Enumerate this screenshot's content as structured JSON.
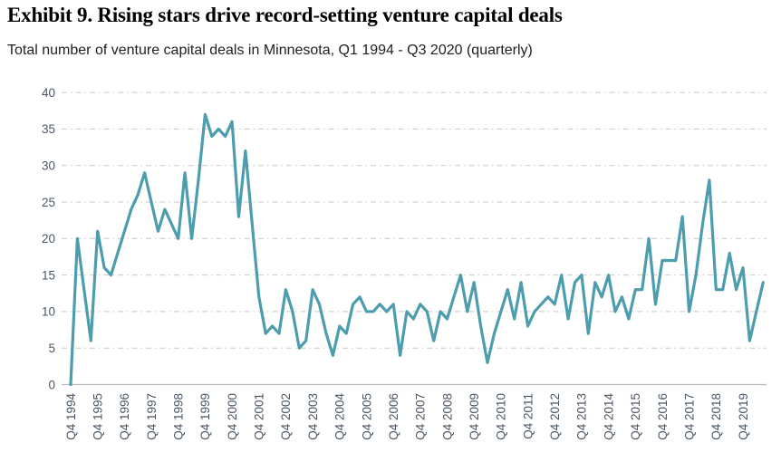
{
  "header": {
    "title": "Exhibit 9. Rising stars drive record-setting venture capital deals",
    "subtitle": "Total number of venture capital deals in Minnesota, Q1 1994 - Q3 2020 (quarterly)"
  },
  "chart_data": {
    "type": "line",
    "title": "Exhibit 9. Rising stars drive record-setting venture capital deals",
    "subtitle": "Total number of venture capital deals in Minnesota, Q1 1994 - Q3 2020 (quarterly)",
    "xlabel": "",
    "ylabel": "",
    "ylim": [
      0,
      40
    ],
    "y_ticks": [
      0,
      5,
      10,
      15,
      20,
      25,
      30,
      35,
      40
    ],
    "grid": "horizontal-dashed",
    "legend": "none",
    "x_tick_every": 4,
    "categories": [
      "Q4 1994",
      "Q1 1995",
      "Q2 1995",
      "Q3 1995",
      "Q4 1995",
      "Q1 1996",
      "Q2 1996",
      "Q3 1996",
      "Q4 1996",
      "Q1 1997",
      "Q2 1997",
      "Q3 1997",
      "Q4 1997",
      "Q1 1998",
      "Q2 1998",
      "Q3 1998",
      "Q4 1998",
      "Q1 1999",
      "Q2 1999",
      "Q3 1999",
      "Q4 1999",
      "Q1 2000",
      "Q2 2000",
      "Q3 2000",
      "Q4 2000",
      "Q1 2001",
      "Q2 2001",
      "Q3 2001",
      "Q4 2001",
      "Q1 2002",
      "Q2 2002",
      "Q3 2002",
      "Q4 2002",
      "Q1 2003",
      "Q2 2003",
      "Q3 2003",
      "Q4 2003",
      "Q1 2004",
      "Q2 2004",
      "Q3 2004",
      "Q4 2004",
      "Q1 2005",
      "Q2 2005",
      "Q3 2005",
      "Q4 2005",
      "Q1 2006",
      "Q2 2006",
      "Q3 2006",
      "Q4 2006",
      "Q1 2007",
      "Q2 2007",
      "Q3 2007",
      "Q4 2007",
      "Q1 2008",
      "Q2 2008",
      "Q3 2008",
      "Q4 2008",
      "Q1 2009",
      "Q2 2009",
      "Q3 2009",
      "Q4 2009",
      "Q1 2010",
      "Q2 2010",
      "Q3 2010",
      "Q4 2010",
      "Q1 2011",
      "Q2 2011",
      "Q3 2011",
      "Q4 2011",
      "Q1 2012",
      "Q2 2012",
      "Q3 2012",
      "Q4 2012",
      "Q1 2013",
      "Q2 2013",
      "Q3 2013",
      "Q4 2013",
      "Q1 2014",
      "Q2 2014",
      "Q3 2014",
      "Q4 2014",
      "Q1 2015",
      "Q2 2015",
      "Q3 2015",
      "Q4 2015",
      "Q1 2016",
      "Q2 2016",
      "Q3 2016",
      "Q4 2016",
      "Q1 2017",
      "Q2 2017",
      "Q3 2017",
      "Q4 2017",
      "Q1 2018",
      "Q2 2018",
      "Q3 2018",
      "Q4 2018",
      "Q1 2019",
      "Q2 2019",
      "Q3 2019",
      "Q4 2019",
      "Q1 2020",
      "Q2 2020",
      "Q3 2020"
    ],
    "values": [
      0,
      20,
      13,
      6,
      21,
      16,
      15,
      18,
      21,
      24,
      26,
      29,
      25,
      21,
      24,
      22,
      20,
      29,
      20,
      28,
      37,
      34,
      35,
      34,
      36,
      23,
      32,
      22,
      12,
      7,
      8,
      7,
      13,
      10,
      5,
      6,
      13,
      11,
      7,
      4,
      8,
      7,
      11,
      12,
      10,
      10,
      11,
      10,
      11,
      4,
      10,
      9,
      11,
      10,
      6,
      10,
      9,
      12,
      15,
      10,
      14,
      8,
      3,
      7,
      10,
      13,
      9,
      14,
      8,
      10,
      11,
      12,
      11,
      15,
      9,
      14,
      15,
      7,
      14,
      12,
      15,
      10,
      12,
      9,
      13,
      13,
      20,
      11,
      17,
      17,
      17,
      23,
      10,
      15,
      22,
      28,
      13,
      13,
      18,
      13,
      16,
      6,
      10,
      14
    ],
    "x_tick_labels": [
      "Q4 1994",
      "Q4 1995",
      "Q4 1996",
      "Q4 1997",
      "Q4 1998",
      "Q4 1999",
      "Q4 2000",
      "Q4 2001",
      "Q4 2002",
      "Q4 2003",
      "Q4 2004",
      "Q4 2005",
      "Q4 2006",
      "Q4 2007",
      "Q4 2008",
      "Q4 2009",
      "Q4 2010",
      "Q4 2011",
      "Q4 2012",
      "Q4 2013",
      "Q4 2014",
      "Q4 2015",
      "Q4 2016",
      "Q4 2017",
      "Q4 2018",
      "Q4 2019"
    ],
    "colors": {
      "line": "#4d9dae",
      "grid": "#c8c8c8",
      "axis": "#b9b9b9",
      "tick_text": "#4a5664"
    }
  }
}
